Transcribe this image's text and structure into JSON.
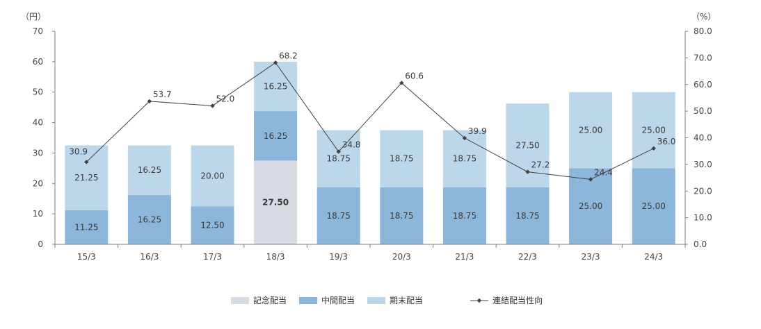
{
  "chart_data": {
    "type": "bar",
    "stacked": true,
    "left_axis_unit": "（円）",
    "right_axis_unit": "（%）",
    "categories": [
      "15/3",
      "16/3",
      "17/3",
      "18/3",
      "19/3",
      "20/3",
      "21/3",
      "22/3",
      "23/3",
      "24/3"
    ],
    "ylim_left": [
      0,
      70
    ],
    "yticks_left": [
      "0",
      "10",
      "20",
      "30",
      "40",
      "50",
      "60",
      "70"
    ],
    "ylim_right": [
      0,
      80
    ],
    "yticks_right": [
      "0.0",
      "10.0",
      "20.0",
      "30.0",
      "40.0",
      "50.0",
      "60.0",
      "70.0",
      "80.0"
    ],
    "series": [
      {
        "name": "記念配当",
        "color": "#d6dce2",
        "values": [
          0,
          0,
          0,
          27.5,
          0,
          0,
          0,
          0,
          0,
          0
        ],
        "labels": [
          "",
          "",
          "",
          "27.50",
          "",
          "",
          "",
          "",
          "",
          ""
        ]
      },
      {
        "name": "中間配当",
        "color": "#8db7da",
        "values": [
          11.25,
          16.25,
          12.5,
          16.25,
          18.75,
          18.75,
          18.75,
          18.75,
          25.0,
          25.0
        ],
        "labels": [
          "11.25",
          "16.25",
          "12.50",
          "16.25",
          "18.75",
          "18.75",
          "18.75",
          "18.75",
          "25.00",
          "25.00"
        ]
      },
      {
        "name": "期末配当",
        "color": "#bdd7ea",
        "values": [
          21.25,
          16.25,
          20.0,
          16.25,
          18.75,
          18.75,
          18.75,
          27.5,
          25.0,
          25.0
        ],
        "labels": [
          "21.25",
          "16.25",
          "20.00",
          "16.25",
          "18.75",
          "18.75",
          "18.75",
          "27.50",
          "25.00",
          "25.00"
        ]
      }
    ],
    "line_series": {
      "name": "連結配当性向",
      "axis": "right",
      "color": "#404040",
      "values": [
        30.9,
        53.7,
        52.0,
        68.2,
        34.8,
        60.6,
        39.9,
        27.2,
        24.4,
        36.0
      ],
      "labels": [
        "30.9",
        "53.7",
        "52.0",
        "68.2",
        "34.8",
        "60.6",
        "39.9",
        "27.2",
        "24.4",
        "36.0"
      ]
    },
    "legend_position": "bottom",
    "grid": false
  }
}
